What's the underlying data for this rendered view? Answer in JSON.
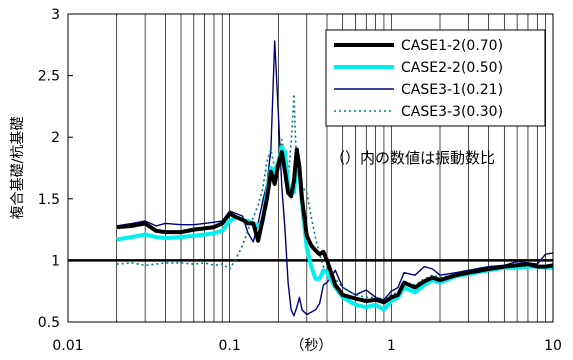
{
  "chart_data": {
    "type": "line",
    "title": "",
    "xlabel": "（秒）",
    "ylabel": "複合基礎/杭基礎",
    "x_scale": "log",
    "xlim": [
      0.01,
      10
    ],
    "ylim": [
      0.5,
      3
    ],
    "x_ticks": [
      "0.01",
      "0.1",
      "1",
      "10"
    ],
    "y_ticks": [
      "0.5",
      "1",
      "1.5",
      "2",
      "2.5",
      "3"
    ],
    "grid": "vertical minor and major gridlines",
    "legend_position": "top-right",
    "annotation": "（）内の数値は振動数比",
    "reference_line": 1,
    "series": [
      {
        "name": "CASE1-2(0.70)",
        "color": "#000000",
        "style": "thick-solid",
        "x": [
          0.02,
          0.025,
          0.03,
          0.035,
          0.04,
          0.05,
          0.06,
          0.07,
          0.08,
          0.09,
          0.1,
          0.11,
          0.12,
          0.13,
          0.14,
          0.15,
          0.16,
          0.17,
          0.18,
          0.19,
          0.2,
          0.21,
          0.22,
          0.23,
          0.24,
          0.25,
          0.26,
          0.27,
          0.28,
          0.3,
          0.32,
          0.34,
          0.36,
          0.38,
          0.4,
          0.45,
          0.5,
          0.6,
          0.7,
          0.8,
          0.9,
          1.0,
          1.1,
          1.2,
          1.4,
          1.6,
          1.8,
          2.0,
          2.5,
          3,
          4,
          5,
          6,
          7,
          8,
          9,
          10
        ],
        "values": [
          1.27,
          1.28,
          1.3,
          1.24,
          1.23,
          1.23,
          1.25,
          1.26,
          1.27,
          1.3,
          1.38,
          1.35,
          1.33,
          1.3,
          1.3,
          1.16,
          1.33,
          1.5,
          1.72,
          1.62,
          1.78,
          1.88,
          1.72,
          1.55,
          1.52,
          1.65,
          1.9,
          1.76,
          1.5,
          1.2,
          1.12,
          1.08,
          1.05,
          1.07,
          1.0,
          0.8,
          0.72,
          0.69,
          0.67,
          0.68,
          0.66,
          0.7,
          0.72,
          0.82,
          0.78,
          0.83,
          0.86,
          0.84,
          0.88,
          0.9,
          0.93,
          0.95,
          0.96,
          0.97,
          0.95,
          0.95,
          0.96
        ]
      },
      {
        "name": "CASE2-2(0.50)",
        "color": "#00f0f0",
        "style": "thick-solid",
        "x": [
          0.02,
          0.025,
          0.03,
          0.035,
          0.04,
          0.05,
          0.06,
          0.07,
          0.08,
          0.09,
          0.1,
          0.11,
          0.12,
          0.13,
          0.14,
          0.15,
          0.16,
          0.17,
          0.18,
          0.19,
          0.2,
          0.21,
          0.22,
          0.23,
          0.24,
          0.25,
          0.26,
          0.27,
          0.28,
          0.3,
          0.32,
          0.34,
          0.36,
          0.38,
          0.4,
          0.45,
          0.5,
          0.6,
          0.7,
          0.8,
          0.9,
          1.0,
          1.1,
          1.2,
          1.4,
          1.6,
          1.8,
          2.0,
          2.5,
          3,
          4,
          5,
          6,
          7,
          8,
          9,
          10
        ],
        "values": [
          1.17,
          1.19,
          1.21,
          1.19,
          1.18,
          1.19,
          1.2,
          1.21,
          1.22,
          1.24,
          1.32,
          1.35,
          1.33,
          1.32,
          1.3,
          1.28,
          1.32,
          1.55,
          1.75,
          1.72,
          1.8,
          1.92,
          1.88,
          1.62,
          1.58,
          1.55,
          1.82,
          1.72,
          1.45,
          1.1,
          0.95,
          0.85,
          0.85,
          0.92,
          0.9,
          0.78,
          0.7,
          0.64,
          0.62,
          0.64,
          0.6,
          0.67,
          0.7,
          0.78,
          0.74,
          0.8,
          0.84,
          0.82,
          0.87,
          0.89,
          0.92,
          0.94,
          0.94,
          0.95,
          0.95,
          0.94,
          0.94
        ]
      },
      {
        "name": "CASE3-1(0.21)",
        "color": "#00007a",
        "style": "thin-solid",
        "x": [
          0.02,
          0.025,
          0.03,
          0.035,
          0.04,
          0.05,
          0.06,
          0.07,
          0.08,
          0.09,
          0.1,
          0.11,
          0.12,
          0.13,
          0.14,
          0.15,
          0.16,
          0.17,
          0.18,
          0.19,
          0.2,
          0.21,
          0.22,
          0.23,
          0.24,
          0.25,
          0.26,
          0.27,
          0.28,
          0.3,
          0.32,
          0.34,
          0.36,
          0.38,
          0.4,
          0.45,
          0.5,
          0.6,
          0.7,
          0.8,
          0.9,
          1.0,
          1.1,
          1.2,
          1.4,
          1.6,
          1.8,
          2.0,
          2.5,
          3,
          4,
          5,
          6,
          7,
          8,
          9,
          10
        ],
        "values": [
          1.28,
          1.3,
          1.32,
          1.28,
          1.3,
          1.29,
          1.29,
          1.3,
          1.31,
          1.32,
          1.4,
          1.38,
          1.36,
          1.22,
          1.15,
          1.3,
          1.48,
          1.62,
          1.9,
          2.78,
          2.2,
          1.6,
          1.25,
          0.82,
          0.6,
          0.55,
          0.62,
          0.7,
          0.6,
          0.56,
          0.58,
          0.6,
          0.65,
          0.8,
          0.82,
          0.92,
          0.78,
          0.72,
          0.76,
          0.7,
          0.68,
          0.75,
          0.78,
          0.9,
          0.88,
          0.95,
          0.93,
          0.88,
          0.9,
          0.92,
          0.95,
          0.96,
          0.99,
          0.98,
          0.97,
          1.05,
          1.06
        ]
      },
      {
        "name": "CASE3-3(0.30)",
        "color": "#007a7a",
        "style": "dotted",
        "x": [
          0.02,
          0.025,
          0.03,
          0.035,
          0.04,
          0.05,
          0.06,
          0.07,
          0.08,
          0.09,
          0.1,
          0.11,
          0.12,
          0.13,
          0.14,
          0.15,
          0.16,
          0.17,
          0.18,
          0.19,
          0.2,
          0.21,
          0.22,
          0.23,
          0.24,
          0.25,
          0.26,
          0.27,
          0.28,
          0.3,
          0.32,
          0.34,
          0.36,
          0.38,
          0.4,
          0.45,
          0.5,
          0.6,
          0.7,
          0.8,
          0.9,
          1.0,
          1.1,
          1.2,
          1.4,
          1.6,
          1.8,
          2.0,
          2.5,
          3,
          4,
          5,
          6,
          7,
          8,
          9,
          10
        ],
        "values": [
          0.97,
          0.98,
          0.96,
          0.97,
          0.98,
          0.98,
          0.97,
          0.98,
          0.96,
          0.97,
          0.93,
          1.02,
          1.12,
          1.25,
          1.35,
          1.45,
          1.58,
          1.8,
          1.9,
          1.75,
          1.82,
          1.98,
          1.85,
          1.65,
          1.95,
          2.35,
          1.7,
          1.68,
          1.6,
          1.55,
          1.35,
          1.18,
          1.05,
          0.95,
          0.92,
          0.85,
          0.78,
          0.72,
          0.7,
          0.7,
          0.68,
          0.72,
          0.74,
          0.82,
          0.8,
          0.85,
          0.88,
          0.86,
          0.89,
          0.9,
          0.93,
          0.95,
          0.95,
          0.96,
          0.94,
          0.93,
          0.95
        ]
      }
    ]
  }
}
